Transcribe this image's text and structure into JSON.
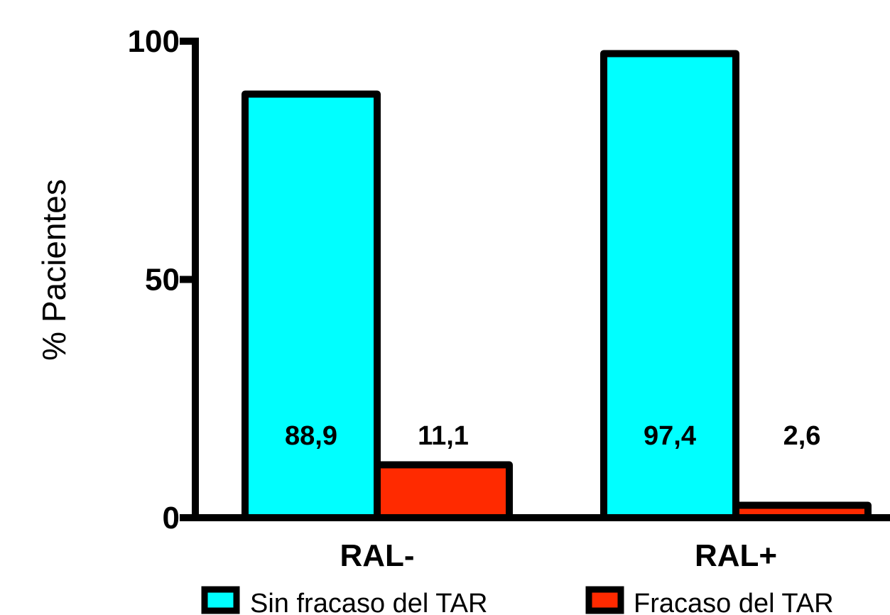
{
  "chart_data": {
    "type": "bar",
    "categories": [
      "RAL-",
      "RAL+"
    ],
    "series": [
      {
        "name": "Sin fracaso del TAR",
        "values": [
          88.9,
          97.4
        ],
        "labels": [
          "88,9",
          "97,4"
        ],
        "color": "#00ffff"
      },
      {
        "name": "Fracaso del TAR",
        "values": [
          11.1,
          2.6
        ],
        "labels": [
          "11,1",
          "2,6"
        ],
        "color": "#ff2a00"
      }
    ],
    "title": "",
    "xlabel": "",
    "ylabel": "% Pacientes",
    "ylim": [
      0,
      100
    ],
    "yticks": [
      {
        "value": 0,
        "label": "0"
      },
      {
        "value": 50,
        "label": "50"
      },
      {
        "value": 100,
        "label": "100"
      }
    ],
    "grid": false,
    "legend_position": "bottom"
  }
}
